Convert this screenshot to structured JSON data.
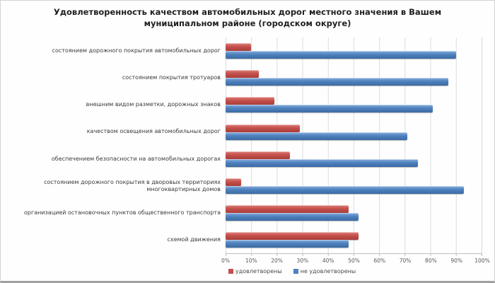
{
  "title": "Удовлетворенность качеством автомобильных дорог местного значения в Вашем муниципальном районе (городском округе)",
  "chart_data": {
    "type": "bar",
    "orientation": "horizontal",
    "categories": [
      "состоянием дорожного покрытия автомобильных дорог",
      "состоянием покрытия тротуаров",
      "внешним видом разметки, дорожных знаков",
      "качеством освещения автомобильных дорог",
      "обеспечением безопасности на автомобильных дорогах",
      "состоянием дорожного покрытия в дворовых территориях многоквартирных домов",
      "организацией остановочных пунктов общественного транспорта",
      "схемой движения"
    ],
    "series": [
      {
        "name": "удовлетворены",
        "color": "#c0504d",
        "values": [
          10,
          13,
          19,
          29,
          25,
          6,
          48,
          52
        ]
      },
      {
        "name": "не удовлетворены",
        "color": "#4f81bd",
        "values": [
          90,
          87,
          81,
          71,
          75,
          93,
          52,
          48
        ]
      }
    ],
    "xlim": [
      0,
      100
    ],
    "x_ticks": [
      "0%",
      "10%",
      "20%",
      "30%",
      "40%",
      "50%",
      "60%",
      "70%",
      "80%",
      "90%",
      "100%"
    ],
    "grid": true,
    "grid_color": "#dcdcdc",
    "legend_position": "bottom"
  }
}
